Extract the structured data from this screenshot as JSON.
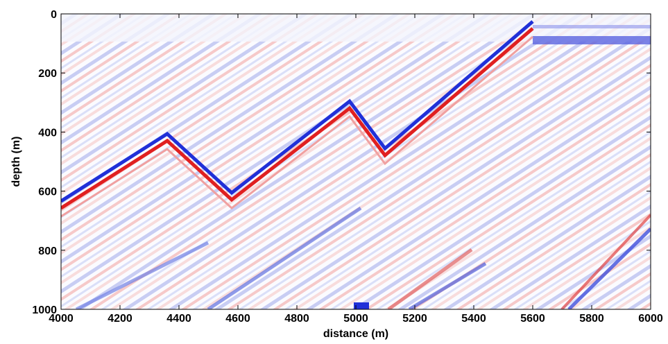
{
  "chart_data": {
    "type": "image",
    "xlabel": "distance (m)",
    "ylabel": "depth (m)",
    "xlim": [
      4000,
      6000
    ],
    "xticks": [
      4000,
      4200,
      4400,
      4600,
      4800,
      5000,
      5200,
      5400,
      5600,
      5800,
      6000
    ],
    "ylim": [
      0,
      1000
    ],
    "y_reversed": true,
    "yticks": [
      0,
      200,
      400,
      600,
      800,
      1000
    ]
  }
}
